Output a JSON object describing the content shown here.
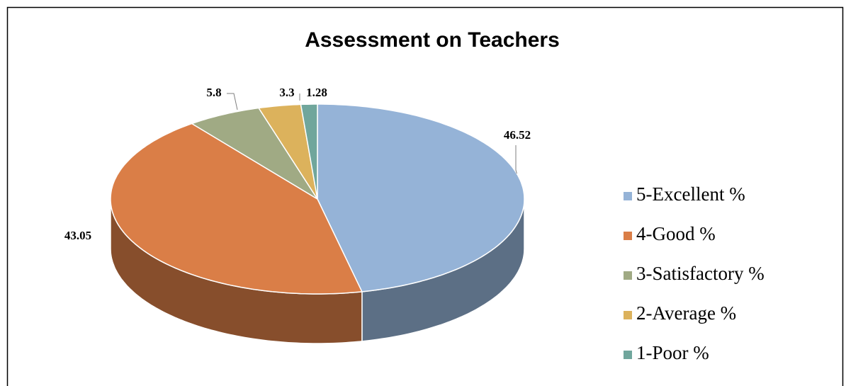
{
  "chart_data": {
    "type": "pie3d",
    "title": "Assessment  on Teachers",
    "categories": [
      "5-Excellent %",
      "4-Good %",
      "3-Satisfactory %",
      "2-Average %",
      "1-Poor %"
    ],
    "values": [
      46.52,
      43.05,
      5.8,
      3.3,
      1.28
    ],
    "colors": [
      "#95b3d7",
      "#da7e47",
      "#a0aa84",
      "#dcb25c",
      "#70a69c"
    ],
    "legend": "right"
  }
}
